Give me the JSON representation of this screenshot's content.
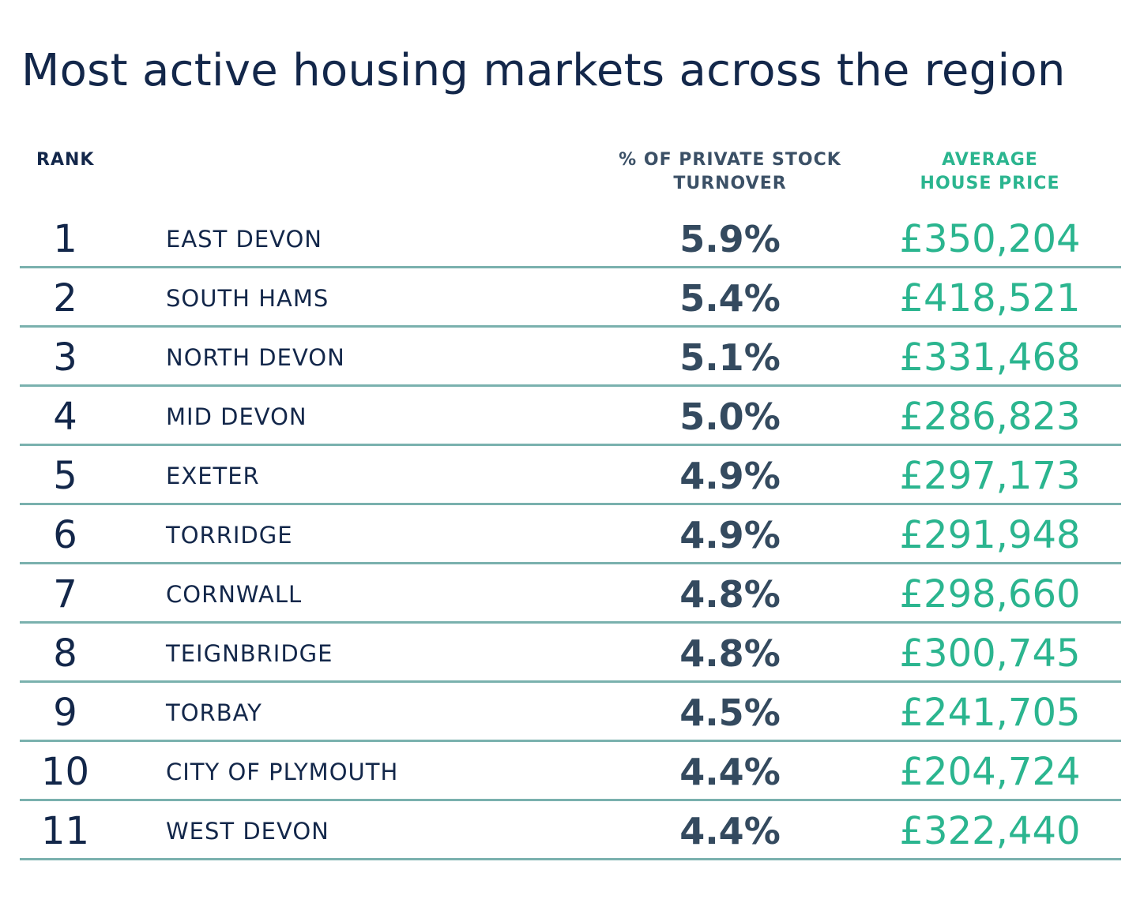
{
  "chart_data": {
    "type": "table",
    "title": "Most active housing markets across the region",
    "columns": [
      "RANK",
      "",
      "% OF PRIVATE STOCK TURNOVER",
      "AVERAGE HOUSE PRICE"
    ],
    "header_lines": {
      "rank": "RANK",
      "turnover_line1": "% OF PRIVATE STOCK",
      "turnover_line2": "TURNOVER",
      "price_line1": "AVERAGE",
      "price_line2": "HOUSE PRICE"
    },
    "rows": [
      {
        "rank": "1",
        "area": "EAST DEVON",
        "turnover": "5.9%",
        "price": "£350,204"
      },
      {
        "rank": "2",
        "area": "SOUTH HAMS",
        "turnover": "5.4%",
        "price": "£418,521"
      },
      {
        "rank": "3",
        "area": "NORTH DEVON",
        "turnover": "5.1%",
        "price": "£331,468"
      },
      {
        "rank": "4",
        "area": "MID DEVON",
        "turnover": "5.0%",
        "price": "£286,823"
      },
      {
        "rank": "5",
        "area": "EXETER",
        "turnover": "4.9%",
        "price": "£297,173"
      },
      {
        "rank": "6",
        "area": "TORRIDGE",
        "turnover": "4.9%",
        "price": "£291,948"
      },
      {
        "rank": "7",
        "area": "CORNWALL",
        "turnover": "4.8%",
        "price": "£298,660"
      },
      {
        "rank": "8",
        "area": "TEIGNBRIDGE",
        "turnover": "4.8%",
        "price": "£300,745"
      },
      {
        "rank": "9",
        "area": "TORBAY",
        "turnover": "4.5%",
        "price": "£241,705"
      },
      {
        "rank": "10",
        "area": "CITY OF PLYMOUTH",
        "turnover": "4.4%",
        "price": "£204,724"
      },
      {
        "rank": "11",
        "area": "WEST DEVON",
        "turnover": "4.4%",
        "price": "£322,440"
      }
    ]
  },
  "colors": {
    "title": "#13274a",
    "turnover": "#344a5f",
    "price": "#2bb58f",
    "rule": "#7ab1ae"
  }
}
